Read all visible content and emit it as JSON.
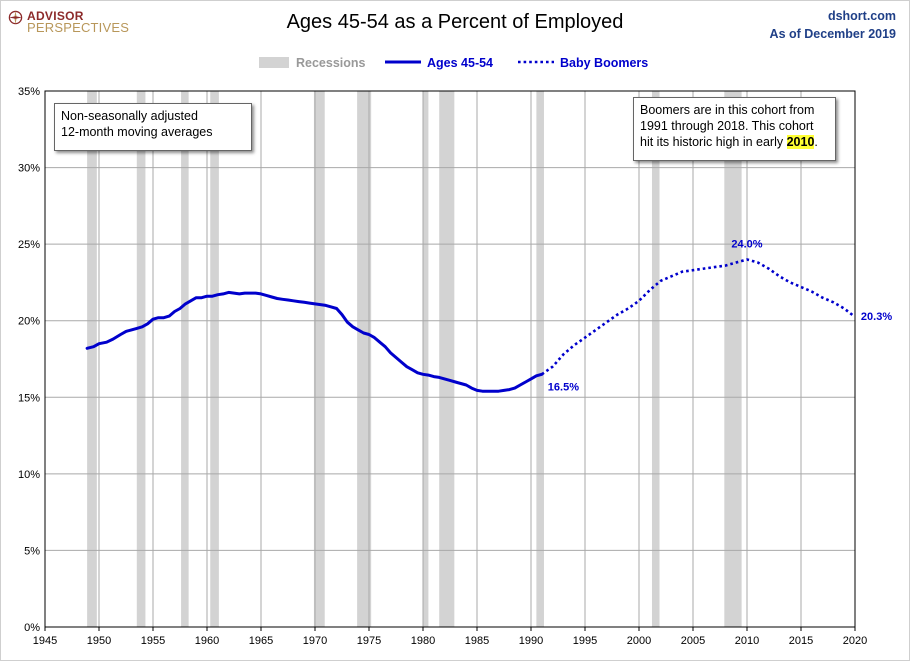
{
  "header": {
    "logo_line1": "ADVISOR",
    "logo_line2": "PERSPECTIVES",
    "title": "Ages 45-54 as a Percent of Employed",
    "source": "dshort.com",
    "as_of": "As of December 2019"
  },
  "notes": {
    "left": [
      "Non-seasonally adjusted",
      "12-month moving averages"
    ],
    "right_line1": "Boomers are in this cohort from",
    "right_line2": "1991  through 2018.  This cohort",
    "right_line3_pre": "hit its historic high in early ",
    "right_line3_year": "2010",
    "right_line3_post": "."
  },
  "colors": {
    "series": "#0000cc",
    "recession": "#d3d3d3",
    "grid": "#a9a9a9",
    "label_text": "#1f3f87",
    "highlight": "#ffff33"
  },
  "chart_data": {
    "type": "line",
    "xlim": [
      1945,
      2020
    ],
    "ylim": [
      0,
      35
    ],
    "x_ticks": [
      1945,
      1950,
      1955,
      1960,
      1965,
      1970,
      1975,
      1980,
      1985,
      1990,
      1995,
      2000,
      2005,
      2010,
      2015,
      2020
    ],
    "x_tick_labels": [
      "1945",
      "1950",
      "1955",
      "1960",
      "1965",
      "1970",
      "1975",
      "1980",
      "1985",
      "1990",
      "1995",
      "2000",
      "2005",
      "2010",
      "2015",
      "2020"
    ],
    "y_ticks": [
      0,
      5,
      10,
      15,
      20,
      25,
      30,
      35
    ],
    "y_tick_labels": [
      "0%",
      "5%",
      "10%",
      "15%",
      "20%",
      "25%",
      "30%",
      "35%"
    ],
    "grid": true,
    "legend": {
      "position": "top-center",
      "items": [
        {
          "label": "Recessions",
          "style": "band"
        },
        {
          "label": "Ages 45-54",
          "style": "solid"
        },
        {
          "label": "Baby Boomers",
          "style": "dotted"
        }
      ]
    },
    "recessions": [
      [
        1948.9,
        1949.8
      ],
      [
        1953.5,
        1954.3
      ],
      [
        1957.6,
        1958.3
      ],
      [
        1960.3,
        1961.1
      ],
      [
        1969.9,
        1970.9
      ],
      [
        1973.9,
        1975.2
      ],
      [
        1980.0,
        1980.5
      ],
      [
        1981.5,
        1982.9
      ],
      [
        1990.5,
        1991.2
      ],
      [
        2001.2,
        2001.9
      ],
      [
        2007.9,
        2009.5
      ]
    ],
    "series": [
      {
        "name": "Ages 45-54",
        "style": "solid",
        "x": [
          1948.9,
          1949.5,
          1950.0,
          1950.7,
          1951.3,
          1952.0,
          1952.5,
          1953.0,
          1953.5,
          1954.0,
          1954.5,
          1955.0,
          1955.5,
          1956.0,
          1956.5,
          1957.0,
          1957.5,
          1958.0,
          1958.5,
          1959.0,
          1959.5,
          1960.0,
          1960.5,
          1961.0,
          1961.5,
          1962.0,
          1962.5,
          1963.0,
          1963.5,
          1964.0,
          1964.5,
          1965.0,
          1965.5,
          1966.0,
          1966.5,
          1967.0,
          1967.5,
          1968.0,
          1968.5,
          1969.0,
          1969.5,
          1970.0,
          1970.5,
          1971.0,
          1971.5,
          1972.0,
          1972.5,
          1973.0,
          1973.5,
          1974.0,
          1974.5,
          1975.0,
          1975.5,
          1976.0,
          1976.5,
          1977.0,
          1977.5,
          1978.0,
          1978.5,
          1979.0,
          1979.5,
          1980.0,
          1980.5,
          1981.0,
          1981.5,
          1982.0,
          1982.5,
          1983.0,
          1983.5,
          1984.0,
          1984.5,
          1985.0,
          1985.5,
          1986.0,
          1986.5,
          1987.0,
          1987.5,
          1988.0,
          1988.5,
          1989.0,
          1989.5,
          1990.0,
          1990.5,
          1991.0
        ],
        "values": [
          18.2,
          18.3,
          18.5,
          18.6,
          18.8,
          19.1,
          19.3,
          19.4,
          19.5,
          19.6,
          19.8,
          20.1,
          20.2,
          20.2,
          20.3,
          20.6,
          20.8,
          21.1,
          21.3,
          21.5,
          21.5,
          21.6,
          21.6,
          21.7,
          21.75,
          21.85,
          21.8,
          21.75,
          21.8,
          21.8,
          21.8,
          21.75,
          21.65,
          21.55,
          21.45,
          21.4,
          21.35,
          21.3,
          21.25,
          21.2,
          21.15,
          21.1,
          21.05,
          21.0,
          20.9,
          20.8,
          20.4,
          19.9,
          19.6,
          19.4,
          19.2,
          19.1,
          18.9,
          18.6,
          18.3,
          17.9,
          17.6,
          17.3,
          17.0,
          16.8,
          16.6,
          16.5,
          16.45,
          16.35,
          16.3,
          16.2,
          16.1,
          16.0,
          15.9,
          15.8,
          15.6,
          15.45,
          15.4,
          15.4,
          15.4,
          15.4,
          15.45,
          15.5,
          15.6,
          15.8,
          16.0,
          16.2,
          16.4,
          16.5
        ]
      },
      {
        "name": "Baby Boomers",
        "style": "dotted",
        "x": [
          1991.0,
          1992.0,
          1993.0,
          1994.0,
          1995.0,
          1996.0,
          1997.0,
          1998.0,
          1999.0,
          2000.0,
          2001.0,
          2002.0,
          2003.0,
          2004.0,
          2005.0,
          2006.0,
          2007.0,
          2008.0,
          2009.0,
          2010.0,
          2011.0,
          2012.0,
          2013.0,
          2014.0,
          2015.0,
          2016.0,
          2017.0,
          2018.0,
          2019.0,
          2019.9
        ],
        "values": [
          16.5,
          17.0,
          17.8,
          18.4,
          18.9,
          19.4,
          19.9,
          20.4,
          20.8,
          21.3,
          22.0,
          22.6,
          22.9,
          23.2,
          23.3,
          23.4,
          23.5,
          23.6,
          23.8,
          24.0,
          23.8,
          23.4,
          22.9,
          22.5,
          22.2,
          21.9,
          21.5,
          21.2,
          20.8,
          20.3
        ]
      }
    ],
    "annotations": [
      {
        "x": 1991.0,
        "y": 16.5,
        "text": "16.5%",
        "anchor": "below-right"
      },
      {
        "x": 2010.0,
        "y": 24.0,
        "text": "24.0%",
        "anchor": "above"
      },
      {
        "x": 2019.9,
        "y": 20.3,
        "text": "20.3%",
        "anchor": "right"
      }
    ]
  }
}
